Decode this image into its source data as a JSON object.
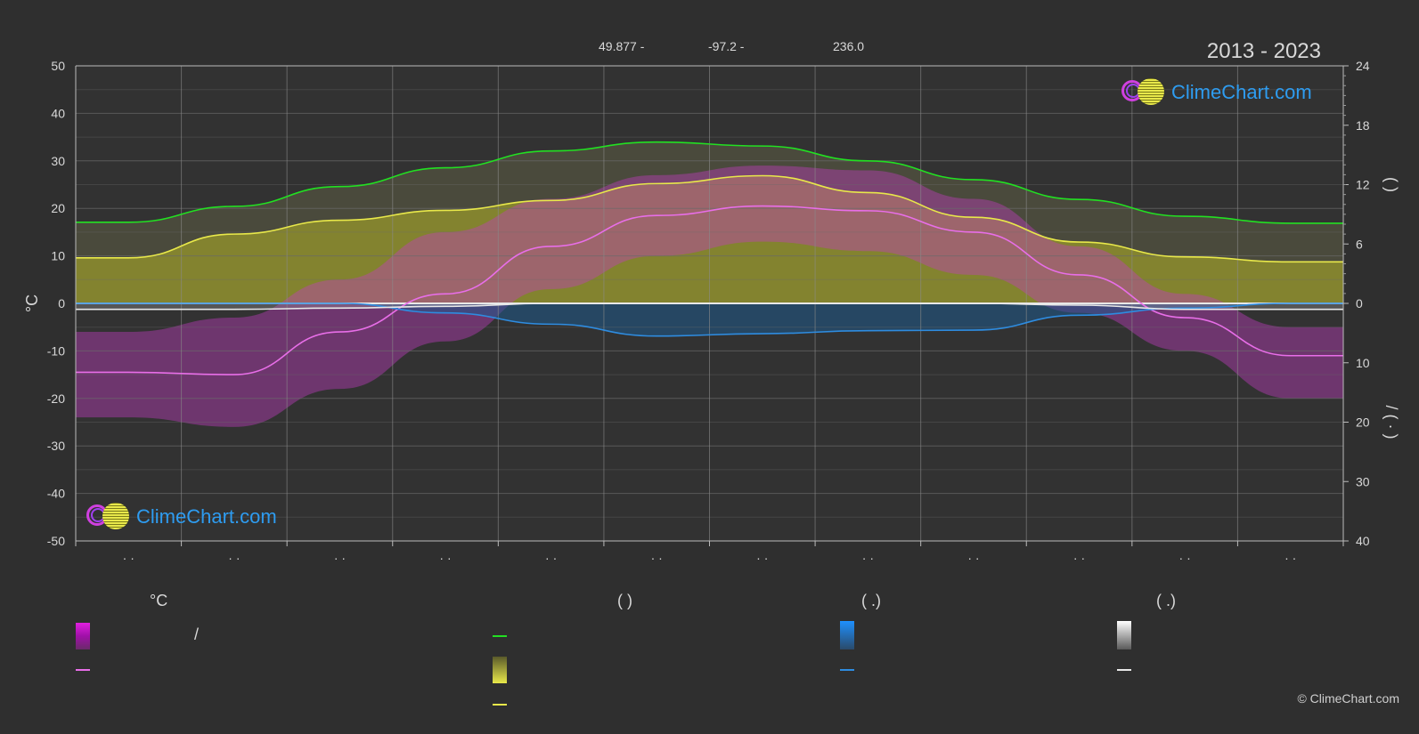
{
  "header": {
    "latitude": "49.877 -",
    "longitude": "-97.2 -",
    "elevation": "236.0",
    "period": "2013 - 2023"
  },
  "brand": {
    "logo_text": "ClimeChart.com",
    "copyright": "© ClimeChart.com"
  },
  "colors": {
    "background": "#2f2f2f",
    "grid": "#6a6a6a",
    "daylight": "#22e022",
    "sunshine": "#e8e84a",
    "temperature": "#e86ee8",
    "rain": "#2e8ce0",
    "snow": "#e8e8e8",
    "logo_text": "#2e9cf0"
  },
  "legend": {
    "temp_header": "°C",
    "sun_header": "(          )",
    "rain_header": "(   .)",
    "snow_header": "(   .)",
    "temp_range_sep": "/"
  },
  "chart_data": {
    "type": "line",
    "x": [
      1,
      2,
      3,
      4,
      5,
      6,
      7,
      8,
      9,
      10,
      11,
      12
    ],
    "x_tick_labels": [
      "· ·",
      "· ·",
      "· ·",
      "· ·",
      "· ·",
      "· ·",
      "· ·",
      "· ·",
      "· ·",
      "· ·",
      "· ·",
      "· ·"
    ],
    "ylabel_left": "°C",
    "ylim_left": [
      -50,
      50
    ],
    "yticks_left": [
      50,
      40,
      30,
      20,
      10,
      0,
      -10,
      -20,
      -30,
      -40,
      -50
    ],
    "ylabel_right_top": "(    )",
    "ylabel_right_bottom": "/    (   ·   )",
    "yticks_right_top": [
      24,
      18,
      12,
      6,
      0
    ],
    "yticks_right_bottom": [
      10,
      20,
      30,
      40
    ],
    "grid": true,
    "series": [
      {
        "key": "temperature",
        "values": [
          -14.5,
          -15,
          -6,
          2,
          12,
          18.5,
          20.5,
          19.5,
          15,
          6,
          -3,
          -11
        ]
      },
      {
        "key": "daylight",
        "values": [
          8.2,
          9.8,
          11.8,
          13.7,
          15.4,
          16.3,
          15.9,
          14.4,
          12.5,
          10.5,
          8.8,
          8.1
        ]
      },
      {
        "key": "sunshine",
        "values": [
          4.6,
          7.0,
          8.4,
          9.4,
          10.4,
          12.1,
          12.9,
          11.2,
          8.7,
          6.2,
          4.7,
          4.2
        ]
      },
      {
        "key": "rain",
        "values": [
          0,
          0,
          0,
          1.6,
          3.5,
          5.5,
          5.1,
          4.6,
          4.5,
          2.0,
          0.8,
          0
        ]
      },
      {
        "key": "snow",
        "values": [
          1.0,
          1.0,
          0.8,
          0.5,
          0,
          0,
          0,
          0,
          0,
          0.3,
          1.0,
          1.0
        ]
      }
    ],
    "temp_band": {
      "max": [
        -6,
        -3,
        5,
        15,
        22,
        27,
        29,
        28,
        22,
        12,
        2,
        -5
      ],
      "min": [
        -24,
        -26,
        -18,
        -8,
        3,
        10,
        13,
        11,
        6,
        -2,
        -10,
        -20
      ]
    }
  }
}
